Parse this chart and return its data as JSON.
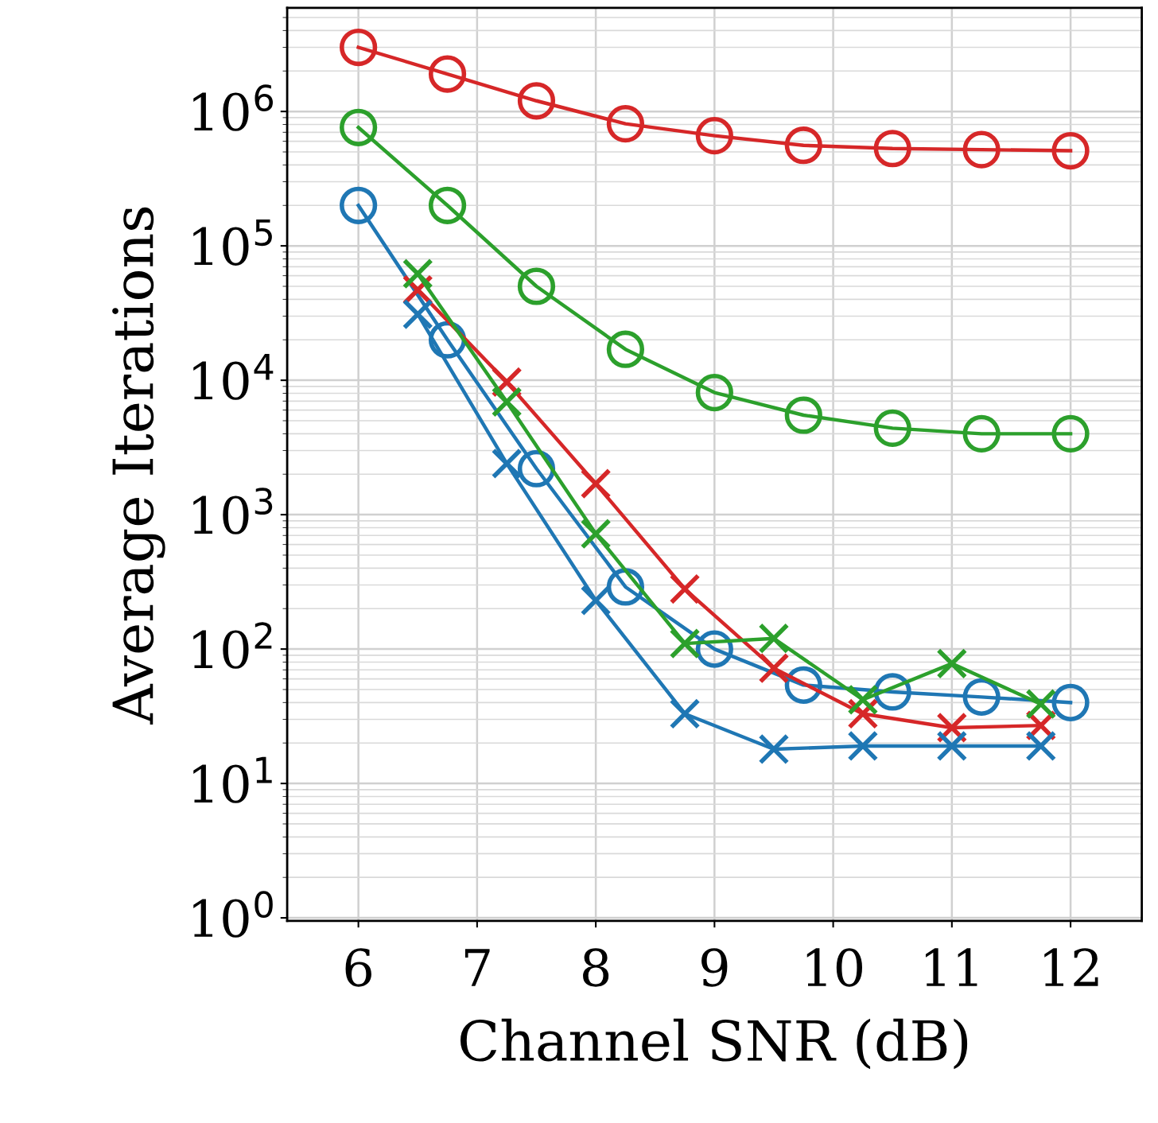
{
  "chart_data": {
    "type": "line",
    "xlabel": "Channel SNR (dB)",
    "ylabel": "Average Iterations",
    "log": "y",
    "grid": true,
    "line_style": "solid",
    "xlim": [
      5.4,
      12.6
    ],
    "xticks": [
      6,
      7,
      8,
      9,
      10,
      11,
      12
    ],
    "ylim": [
      0.95,
      5900000.0
    ],
    "yticks": [
      {
        "value": 1,
        "label": "10$^{0}$"
      },
      {
        "value": 10,
        "label": "10$^{1}$"
      },
      {
        "value": 100,
        "label": "10$^{2}$"
      },
      {
        "value": 1000,
        "label": "10$^{3}$"
      },
      {
        "value": 10000,
        "label": "10$^{4}$"
      },
      {
        "value": 100000,
        "label": "10$^{5}$"
      },
      {
        "value": 1000000,
        "label": "10$^{6}$"
      }
    ],
    "series": [
      {
        "color": "#d62728",
        "marker": "circle",
        "x": [
          6,
          6.75,
          7.5,
          8.25,
          9,
          9.75,
          10.5,
          11.25,
          12
        ],
        "values": [
          3000000.0,
          1900000.0,
          1200000.0,
          810000.0,
          660000.0,
          560000.0,
          530000.0,
          520000.0,
          510000.0
        ]
      },
      {
        "color": "#2ca02c",
        "marker": "circle",
        "x": [
          6,
          6.75,
          7.5,
          8.25,
          9,
          9.75,
          10.5,
          11.25,
          12
        ],
        "values": [
          760000.0,
          200000.0,
          50000.0,
          17000.0,
          8100.0,
          5500.0,
          4400.0,
          4000.0,
          4000.0
        ]
      },
      {
        "color": "#1f77b4",
        "marker": "circle",
        "x": [
          6,
          6.75,
          7.5,
          8.25,
          9,
          9.75,
          10.5,
          11.25,
          12
        ],
        "values": [
          200000.0,
          20000.0,
          2200.0,
          290,
          100,
          54,
          48,
          44,
          40
        ]
      },
      {
        "color": "#d62728",
        "marker": "cross",
        "x": [
          6.5,
          7.25,
          8,
          8.75,
          9.5,
          10.25,
          11,
          11.75
        ],
        "values": [
          47000.0,
          9700.0,
          1700.0,
          280,
          72,
          33,
          26,
          27
        ]
      },
      {
        "color": "#2ca02c",
        "marker": "cross",
        "x": [
          6.5,
          7.25,
          8,
          8.75,
          9.5,
          10.25,
          11,
          11.75
        ],
        "values": [
          62000.0,
          6900.0,
          720,
          110,
          120,
          42,
          78,
          39
        ]
      },
      {
        "color": "#1f77b4",
        "marker": "cross",
        "x": [
          6.5,
          7.25,
          8,
          8.75,
          9.5,
          10.25,
          11,
          11.75
        ],
        "values": [
          31000.0,
          2400.0,
          230,
          33,
          18,
          19,
          19,
          19
        ]
      }
    ]
  }
}
